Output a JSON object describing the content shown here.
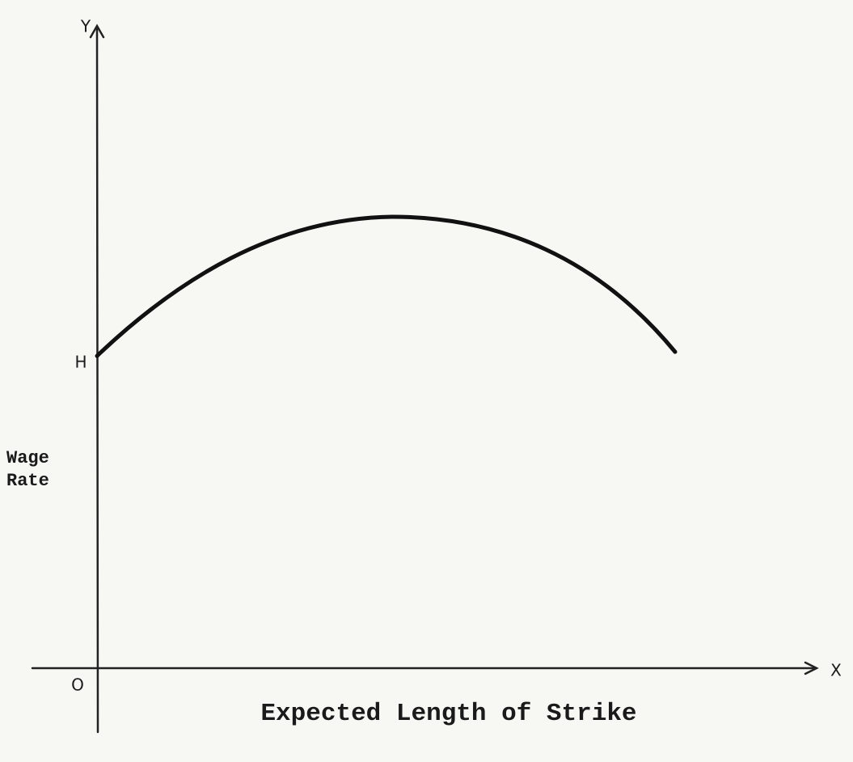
{
  "axes": {
    "y_axis_label": "Y",
    "x_axis_label": "X",
    "origin_label": "O",
    "intercept_label": "H"
  },
  "labels": {
    "y_title": [
      "Wage",
      "Rate"
    ],
    "x_title": "Expected Length of Strike"
  }
}
